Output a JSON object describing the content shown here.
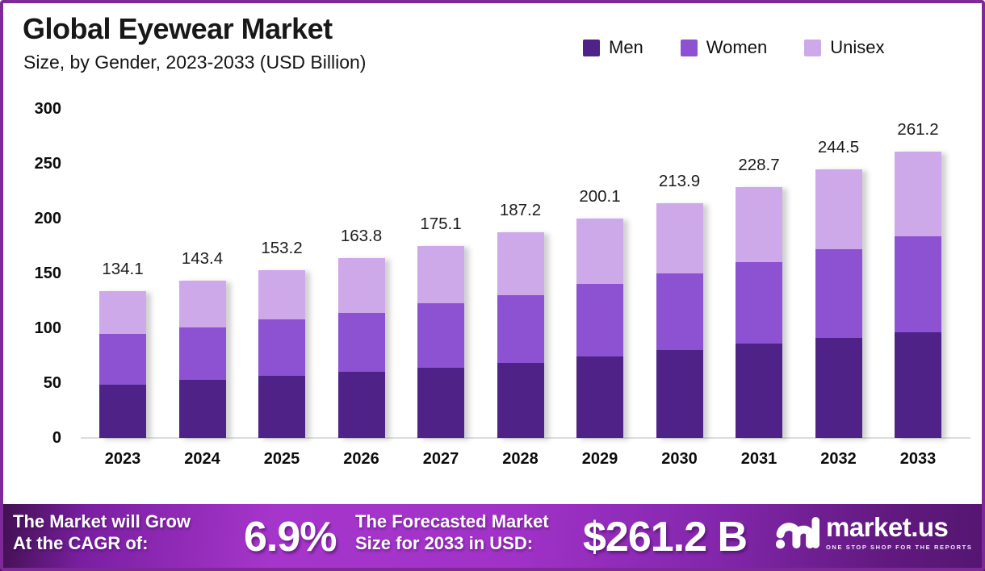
{
  "header": {
    "title": "Global Eyewear Market",
    "subtitle": "Size, by Gender, 2023-2033 (USD Billion)"
  },
  "chart_data": {
    "type": "bar",
    "stacked": true,
    "title": "Global Eyewear Market",
    "subtitle": "Size, by Gender, 2023-2033 (USD Billion)",
    "unit": "USD Billion",
    "categories": [
      2023,
      2024,
      2025,
      2026,
      2027,
      2028,
      2029,
      2030,
      2031,
      2032,
      2033
    ],
    "series": [
      {
        "name": "Men",
        "color": "#4E2287",
        "values": [
          48.7,
          52.9,
          56.6,
          60.4,
          64.0,
          68.3,
          74.6,
          80.1,
          85.9,
          91.2,
          96.5
        ]
      },
      {
        "name": "Women",
        "color": "#8C52D2",
        "values": [
          46.1,
          47.8,
          51.5,
          53.8,
          58.6,
          62.2,
          65.7,
          69.9,
          74.1,
          80.8,
          87.1
        ]
      },
      {
        "name": "Unisex",
        "color": "#CEA9EA",
        "values": [
          39.3,
          42.7,
          45.1,
          49.6,
          52.5,
          56.7,
          59.8,
          63.9,
          68.7,
          72.5,
          77.6
        ]
      }
    ],
    "totals": [
      134.1,
      143.4,
      153.2,
      163.8,
      175.1,
      187.2,
      200.1,
      213.9,
      228.7,
      244.5,
      261.2
    ],
    "total_labels": [
      "134.1",
      "143.4",
      "153.2",
      "163.8",
      "175.1",
      "187.2",
      "200.1",
      "213.9",
      "228.7",
      "244.5",
      "261.2"
    ],
    "y_ticks": [
      0,
      50,
      100,
      150,
      200,
      250,
      300
    ],
    "ylim": [
      0,
      300
    ],
    "grid": false,
    "legend_position": "top-right"
  },
  "banner": {
    "cagr": {
      "line1": "The Market will Grow",
      "line2": "At the CAGR of:",
      "value": "6.9%"
    },
    "forecast": {
      "line1": "The Forecasted Market",
      "line2": "Size for 2033 in USD:",
      "value": "$261.2 B"
    },
    "brand": {
      "name": "market.us",
      "tagline": "ONE STOP SHOP FOR THE REPORTS"
    }
  },
  "colors": {
    "frame_border": "#7D2A98",
    "banner_gradient": [
      "#40104F",
      "#A636CB",
      "#541670"
    ],
    "axis_line": "#DCDCDC"
  }
}
